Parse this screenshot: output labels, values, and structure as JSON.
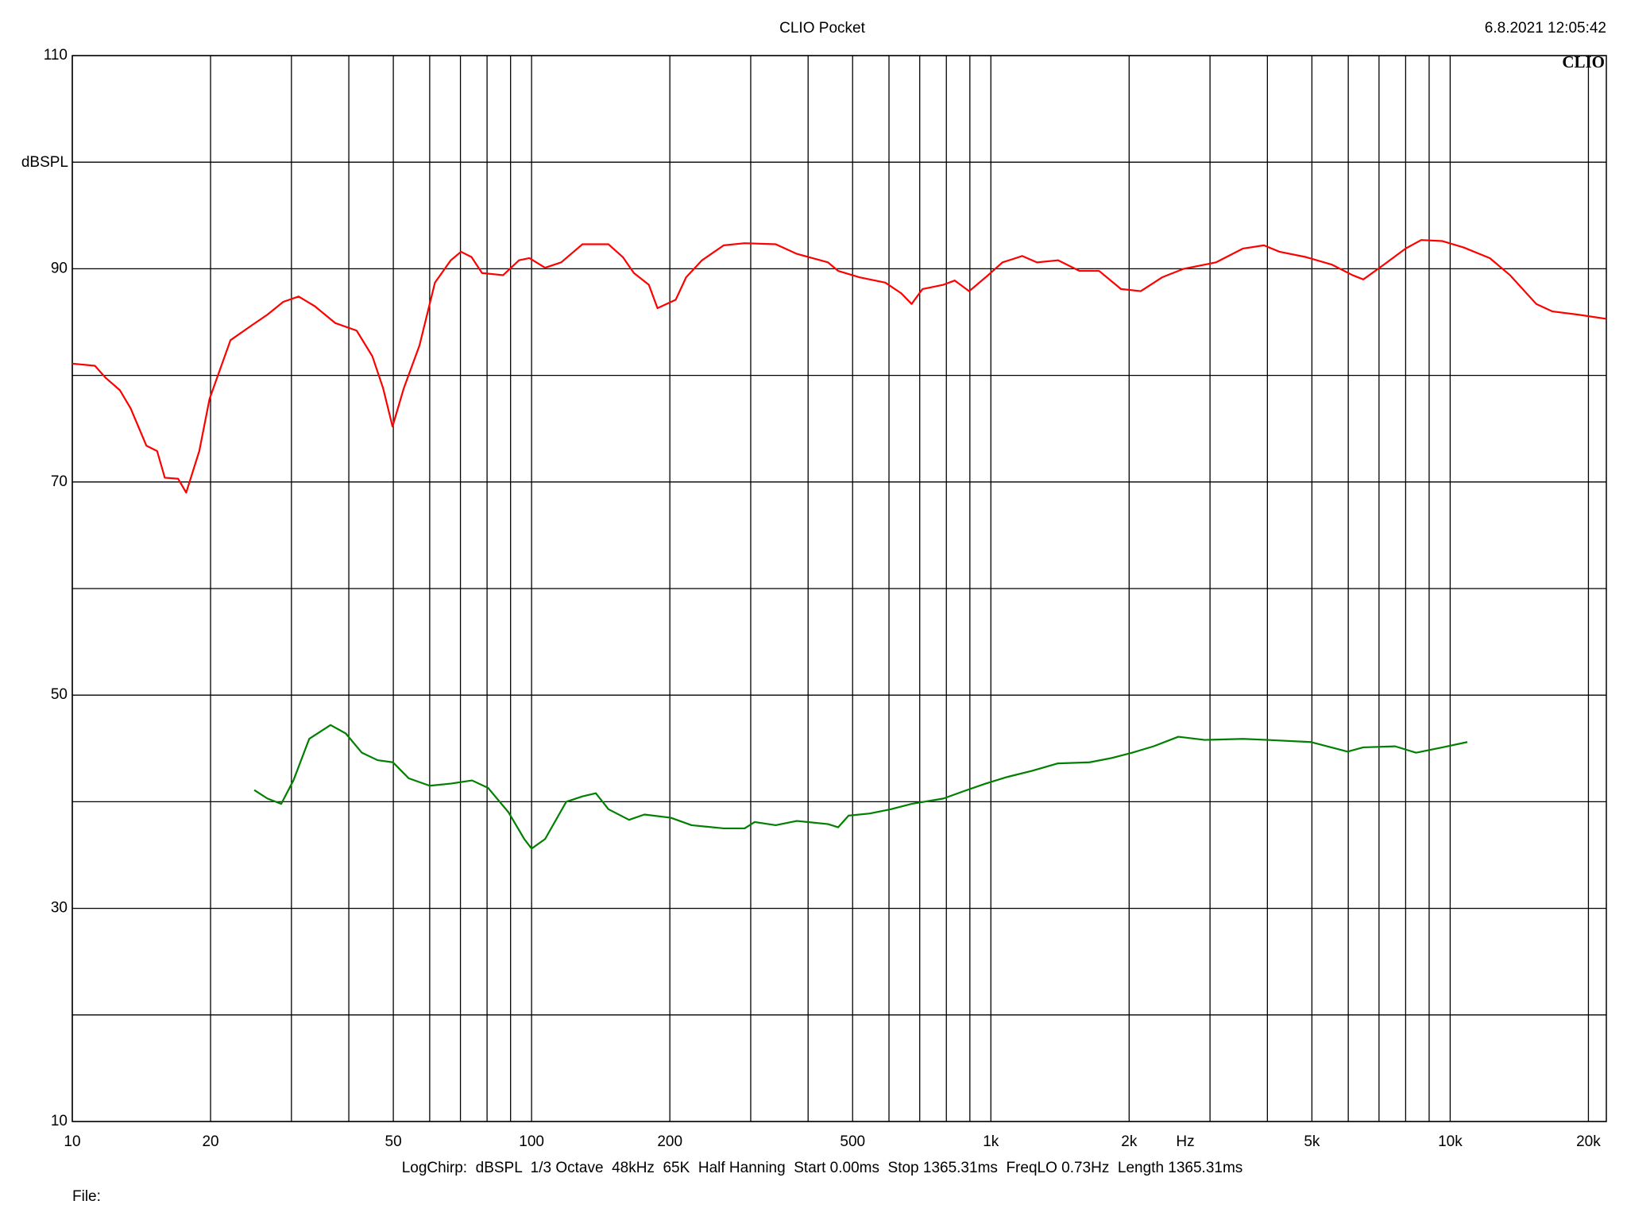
{
  "chart_data": {
    "type": "line",
    "title": "CLIO Pocket",
    "timestamp": "6.8.2021 12:05:42",
    "logo": "CLIO",
    "ylabel": "dBSPL",
    "xlabel": "Hz",
    "footer": "LogChirp:  dBSPL  1/3 Octave  48kHz  65K  Half Hanning  Start 0.00ms  Stop 1365.31ms  FreqLO 0.73Hz  Length 1365.31ms",
    "file_label": "File:",
    "xscale": "log",
    "grid": true,
    "xlim": [
      10,
      21880
    ],
    "ylim": [
      10,
      110
    ],
    "xticks": [
      10,
      20,
      50,
      100,
      200,
      500,
      {
        "value": 1000,
        "label": "1k"
      },
      {
        "value": 2000,
        "label": "2k"
      },
      {
        "value": 5000,
        "label": "5k"
      },
      {
        "value": 10000,
        "label": "10k"
      },
      {
        "value": 20000,
        "label": "20k"
      }
    ],
    "xgrid": [
      30,
      40,
      60,
      70,
      80,
      90,
      300,
      400,
      600,
      700,
      800,
      900,
      3000,
      4000,
      6000,
      7000,
      8000,
      9000
    ],
    "yticks": [
      10,
      30,
      50,
      70,
      90,
      110
    ],
    "ygrid": [
      20,
      40,
      60,
      80,
      100
    ],
    "series": [
      {
        "color": "#ff0000",
        "x": [
          10,
          11.2,
          11.8,
          12.7,
          13.4,
          14.5,
          15.3,
          15.9,
          17.0,
          17.7,
          18.9,
          19.9,
          22.1,
          24.6,
          26.6,
          28.8,
          31.1,
          33.7,
          37.4,
          41.6,
          45.0,
          47.5,
          49.8,
          52.7,
          57,
          61.6,
          66.7,
          70.2,
          74,
          78,
          86.7,
          93.9,
          98.9,
          107,
          116,
          129,
          147,
          158,
          167,
          180,
          188,
          206,
          217,
          235,
          262,
          291,
          340,
          378,
          442,
          465,
          518,
          589,
          638,
          672,
          710,
          788,
          834,
          897,
          974,
          1060,
          1170,
          1260,
          1400,
          1560,
          1720,
          1920,
          2120,
          2360,
          2630,
          3090,
          3540,
          3930,
          4250,
          4850,
          5520,
          6130,
          6470,
          7180,
          8000,
          8650,
          9620,
          10700,
          12200,
          13500,
          15400,
          16700,
          18980,
          21880
        ],
        "values": [
          81.1,
          80.9,
          79.8,
          78.6,
          76.9,
          73.4,
          72.9,
          70.4,
          70.3,
          69.0,
          72.9,
          77.8,
          83.3,
          84.7,
          85.7,
          86.9,
          87.4,
          86.5,
          84.9,
          84.2,
          81.8,
          78.8,
          75.2,
          78.8,
          82.8,
          88.7,
          90.8,
          91.6,
          91.1,
          89.6,
          89.4,
          90.8,
          91.0,
          90.1,
          90.6,
          92.3,
          92.3,
          91.1,
          89.6,
          88.5,
          86.3,
          87.1,
          89.2,
          90.8,
          92.2,
          92.4,
          92.3,
          91.4,
          90.6,
          89.8,
          89.2,
          88.7,
          87.7,
          86.7,
          88.1,
          88.5,
          88.9,
          87.9,
          89.2,
          90.6,
          91.2,
          90.6,
          90.8,
          89.8,
          89.8,
          88.1,
          87.9,
          89.2,
          90.0,
          90.6,
          91.9,
          92.2,
          91.6,
          91.1,
          90.4,
          89.4,
          89.0,
          90.4,
          91.9,
          92.7,
          92.6,
          92.0,
          91.0,
          89.4,
          86.7,
          86.0,
          85.7,
          85.3
        ]
      },
      {
        "color": "#008000",
        "x": [
          24.9,
          26.6,
          28.5,
          30.3,
          32.8,
          36.5,
          39.4,
          42.7,
          46.2,
          49.9,
          54.0,
          60.0,
          66.7,
          74.2,
          80.4,
          89.1,
          96.4,
          100,
          107,
          119,
          129,
          138,
          147,
          163,
          176,
          201,
          223,
          262,
          291,
          306,
          340,
          378,
          442,
          465,
          490,
          545,
          606,
          672,
          788,
          874,
          974,
          1080,
          1230,
          1400,
          1640,
          1830,
          2030,
          2260,
          2560,
          2920,
          3540,
          4000,
          4970,
          5980,
          6470,
          7590,
          8430,
          9620,
          10900
        ],
        "values": [
          41.1,
          40.3,
          39.8,
          42.0,
          45.9,
          47.2,
          46.4,
          44.6,
          43.9,
          43.7,
          42.2,
          41.5,
          41.7,
          42.0,
          41.3,
          39.0,
          36.5,
          35.6,
          36.5,
          40.0,
          40.5,
          40.8,
          39.3,
          38.3,
          38.8,
          38.5,
          37.8,
          37.5,
          37.5,
          38.1,
          37.8,
          38.2,
          37.9,
          37.6,
          38.7,
          38.9,
          39.3,
          39.8,
          40.3,
          41.0,
          41.7,
          42.3,
          42.9,
          43.6,
          43.7,
          44.1,
          44.6,
          45.2,
          46.1,
          45.8,
          45.9,
          45.8,
          45.6,
          44.7,
          45.1,
          45.2,
          44.6,
          45.1,
          45.6
        ]
      }
    ]
  }
}
